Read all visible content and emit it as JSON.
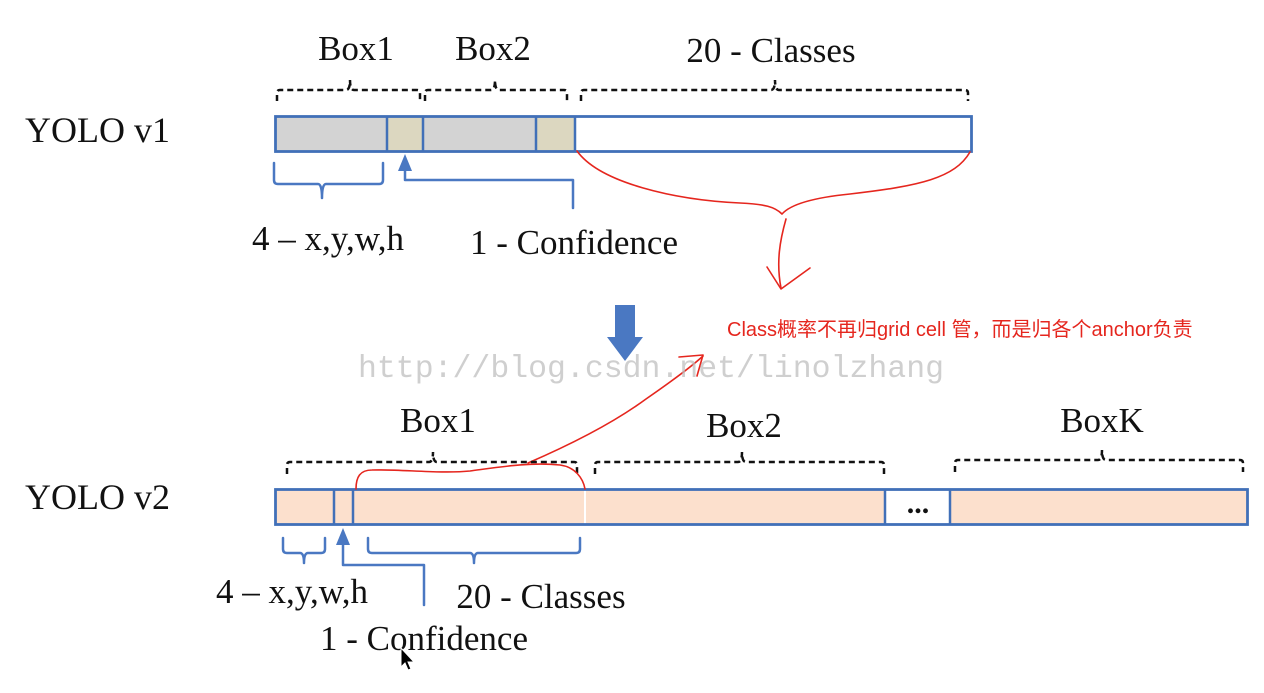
{
  "yolo_v1": {
    "label": "YOLO v1",
    "box1_label": "Box1",
    "box2_label": "Box2",
    "classes_label": "20 - Classes",
    "coords_label": "4 – x,y,w,h",
    "confidence_label": "1 - Confidence"
  },
  "annotation": "Class概率不再归grid cell 管，而是归各个anchor负责",
  "watermark": "http://blog.csdn.net/linolzhang",
  "yolo_v2": {
    "label": "YOLO v2",
    "box1_label": "Box1",
    "box2_label": "Box2",
    "boxk_label": "BoxK",
    "ellipsis": "...",
    "coords_label": "4 – x,y,w,h",
    "classes_label": "20 - Classes",
    "confidence_label": "1 - Confidence"
  },
  "colors": {
    "bar_border": "#4170b8",
    "coords_cell": "#d3d3d3",
    "confidence_cell": "#dcd7c0",
    "empty_cell": "#ffffff",
    "v2_cell": "#fce0cd",
    "v2_inner_divider": "#ffffff",
    "blue_annotation": "#4a78c2",
    "red_annotation": "#e5261e",
    "watermark": "#bdbdbd",
    "cursor": "#000000"
  },
  "icons": {
    "transition_arrow": "down-arrow-icon",
    "pointer": "mouse-cursor-icon"
  }
}
